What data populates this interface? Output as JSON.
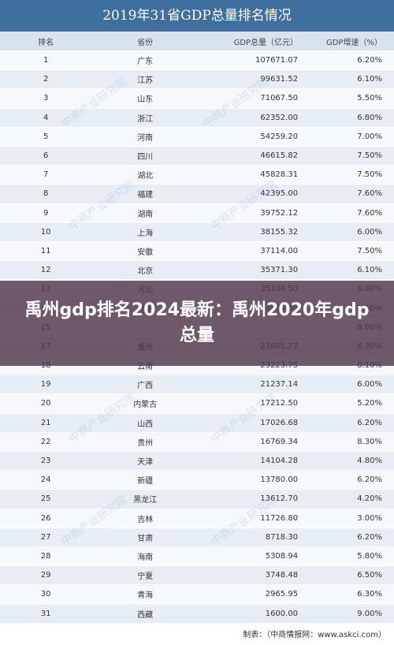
{
  "title": "2019年31省GDP总量排名情况",
  "headers": [
    "排名",
    "省份",
    "GDP总量（亿元）",
    "GDP增速（%）"
  ],
  "rows": [
    [
      "1",
      "广东",
      "107671.07",
      "6.20%"
    ],
    [
      "2",
      "江苏",
      "99631.52",
      "6.10%"
    ],
    [
      "3",
      "山东",
      "71067.50",
      "5.50%"
    ],
    [
      "4",
      "浙江",
      "62352.00",
      "6.80%"
    ],
    [
      "5",
      "河南",
      "54259.20",
      "7.00%"
    ],
    [
      "6",
      "四川",
      "46615.82",
      "7.50%"
    ],
    [
      "7",
      "湖北",
      "45828.31",
      "7.50%"
    ],
    [
      "8",
      "福建",
      "42395.00",
      "7.60%"
    ],
    [
      "9",
      "湖南",
      "39752.12",
      "7.60%"
    ],
    [
      "10",
      "上海",
      "38155.32",
      "6.00%"
    ],
    [
      "11",
      "安徽",
      "37114.00",
      "7.50%"
    ],
    [
      "12",
      "北京",
      "35371.30",
      "6.10%"
    ],
    [
      "13",
      "河北",
      "35104.50",
      "6.80%"
    ],
    [
      "14",
      "辽宁",
      "24909.50",
      "5.50%"
    ],
    [
      "15",
      "",
      "",
      "8.00%"
    ],
    [
      "17",
      "重庆",
      "23605.77",
      "6.30%"
    ],
    [
      "18",
      "云南",
      "23223.75",
      "8.10%"
    ],
    [
      "19",
      "广西",
      "21237.14",
      "6.00%"
    ],
    [
      "20",
      "内蒙古",
      "17212.50",
      "5.20%"
    ],
    [
      "21",
      "山西",
      "17026.68",
      "6.20%"
    ],
    [
      "22",
      "贵州",
      "16769.34",
      "8.30%"
    ],
    [
      "23",
      "天津",
      "14104.28",
      "4.80%"
    ],
    [
      "24",
      "新疆",
      "13780.00",
      "6.20%"
    ],
    [
      "25",
      "黑龙江",
      "13612.70",
      "4.20%"
    ],
    [
      "26",
      "吉林",
      "11726.80",
      "3.00%"
    ],
    [
      "27",
      "甘肃",
      "8718.30",
      "6.20%"
    ],
    [
      "28",
      "海南",
      "5308.94",
      "5.80%"
    ],
    [
      "29",
      "宁夏",
      "3748.48",
      "6.50%"
    ],
    [
      "30",
      "青海",
      "2965.95",
      "6.30%"
    ],
    [
      "31",
      "西藏",
      "1600.00",
      "9.00%"
    ]
  ],
  "source": "制表：（中商情报网：www.askci.com）",
  "overlay_title": "禹州gdp排名2024最新：禹州2020年gdp总量",
  "watermark": "中商产业研究院"
}
